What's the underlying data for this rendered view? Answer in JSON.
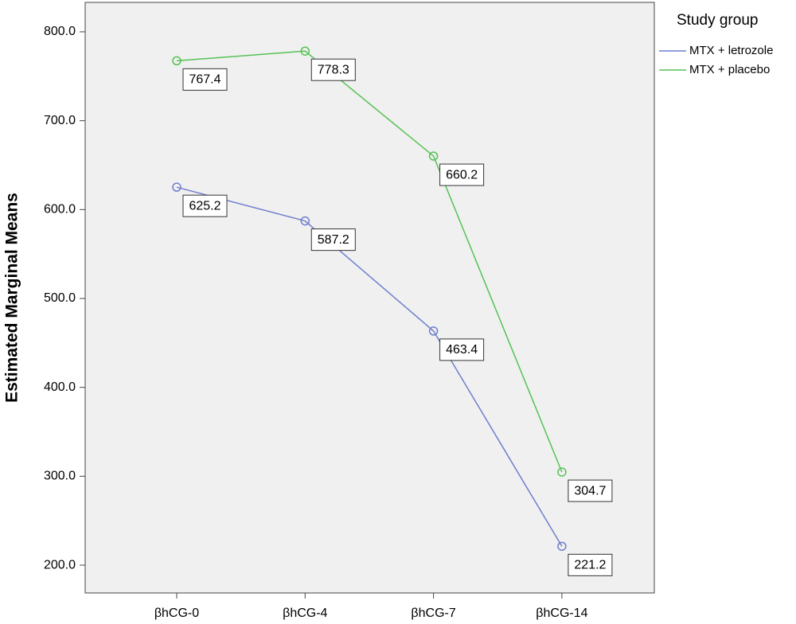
{
  "chart_data": {
    "type": "line",
    "y_label": "Estimated Marginal Means",
    "legend_title": "Study group",
    "legend": "right",
    "categories": [
      "βhCG-0",
      "βhCG-4",
      "βhCG-7",
      "βhCG-14"
    ],
    "series": [
      {
        "name": "MTX + letrozole",
        "color": "#6f7fcb",
        "values": [
          625.2,
          587.2,
          463.4,
          221.2
        ]
      },
      {
        "name": "MTX + placebo",
        "color": "#55c255",
        "values": [
          767.4,
          778.3,
          660.2,
          304.7
        ]
      }
    ],
    "ylim": [
      168.7,
      833.1
    ],
    "yticks": [
      {
        "value": 200,
        "label": "200.0"
      },
      {
        "value": 300,
        "label": "300.0"
      },
      {
        "value": 400,
        "label": "400.0"
      },
      {
        "value": 500,
        "label": "500.0"
      },
      {
        "value": 600,
        "label": "600.0"
      },
      {
        "value": 700,
        "label": "700.0"
      },
      {
        "value": 800,
        "label": "800.0"
      }
    ]
  }
}
